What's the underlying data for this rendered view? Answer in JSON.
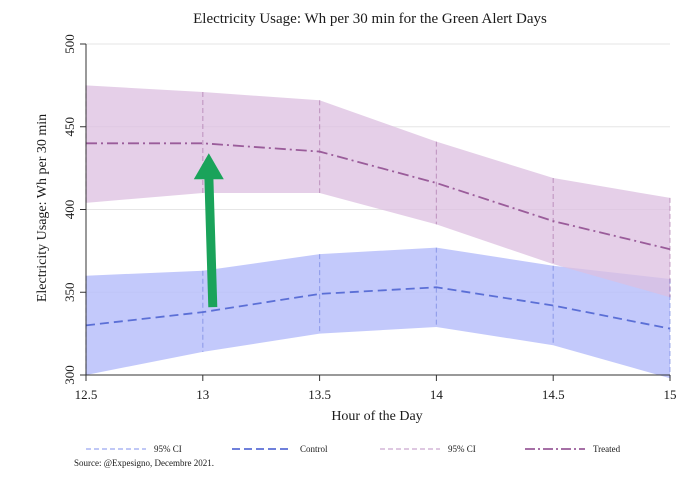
{
  "chart_data": {
    "type": "line",
    "title": "Electricity Usage: Wh per 30 min for the Green Alert Days",
    "xlabel": "Hour of the Day",
    "ylabel": "Electricity Usage: Wh per 30 min",
    "x_ticks": [
      "12.5",
      "13",
      "13.5",
      "14",
      "14.5",
      "15"
    ],
    "y_ticks": [
      "300",
      "350",
      "400",
      "450",
      "500"
    ],
    "xlim": [
      12.5,
      15
    ],
    "ylim": [
      300,
      500
    ],
    "grid": true,
    "legend_position": "bottom",
    "x": [
      12.5,
      13,
      13.5,
      14,
      14.5,
      15
    ],
    "series": [
      {
        "name": "Control",
        "values": [
          330,
          338,
          349,
          353,
          342,
          328
        ],
        "ci_lower": [
          300,
          314,
          325,
          329,
          318,
          298
        ],
        "ci_upper": [
          360,
          363,
          373,
          377,
          366,
          358
        ],
        "ci_name": "95% CI",
        "color": "#5b6fd6",
        "band_color": "#b8c0fa"
      },
      {
        "name": "Treated",
        "values": [
          440,
          440,
          435,
          416,
          393,
          376
        ],
        "ci_lower": [
          404,
          410,
          410,
          391,
          367,
          347
        ],
        "ci_upper": [
          475,
          471,
          466,
          441,
          419,
          407
        ],
        "ci_name": "95% CI",
        "color": "#9a5c9a",
        "band_color": "#dcbfe0"
      }
    ],
    "annotation": {
      "type": "arrow",
      "color": "#1aa35a",
      "x": 13,
      "y_from": 341,
      "y_to": 434
    },
    "legend": [
      {
        "label": "95% CI",
        "style": "ci",
        "color": "#9aa8f0"
      },
      {
        "label": "Control",
        "style": "dash",
        "color": "#5b6fd6"
      },
      {
        "label": "95% CI",
        "style": "ci",
        "color": "#c9a8cf"
      },
      {
        "label": "Treated",
        "style": "dashdot",
        "color": "#9a5c9a"
      }
    ],
    "source": "Source: @Expesigno, Decembre 2021."
  }
}
